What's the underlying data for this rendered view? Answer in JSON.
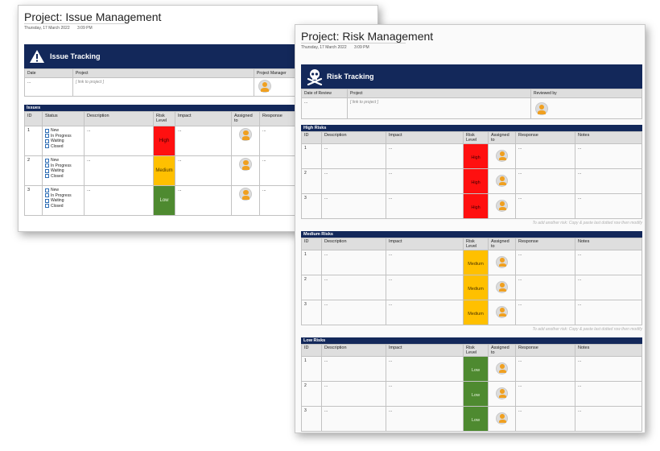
{
  "issue_page": {
    "title": "Project: Issue Management",
    "date": "Thursday, 17 March 2022",
    "time": "3:09 PM",
    "banner_title": "Issue Tracking",
    "banner_icon": "warning-icon",
    "meta_headers": {
      "date": "Date",
      "project": "Project",
      "manager": "Project Manager"
    },
    "meta_values": {
      "date": "...",
      "project": "[ link to project ]"
    },
    "section_label": "Issues",
    "columns": {
      "id": "ID",
      "status": "Status",
      "description": "Description",
      "risk": "Risk Level",
      "impact": "Impact",
      "assigned": "Assigned to",
      "response": "Response"
    },
    "status_options": [
      "New",
      "In Progress",
      "Waiting",
      "Closed"
    ],
    "rows": [
      {
        "id": "1",
        "description": "...",
        "risk": "High",
        "risk_class": "risk-high",
        "impact": "...",
        "response": "..."
      },
      {
        "id": "2",
        "description": "...",
        "risk": "Medium",
        "risk_class": "risk-medium",
        "impact": "...",
        "response": "..."
      },
      {
        "id": "3",
        "description": "...",
        "risk": "Low",
        "risk_class": "risk-low",
        "impact": "...",
        "response": "..."
      }
    ],
    "footnote": "To add another issue: Copy & p"
  },
  "risk_page": {
    "title": "Project: Risk Management",
    "date": "Thursday, 17 March 2022",
    "time": "3:09 PM",
    "banner_title": "Risk Tracking",
    "banner_icon": "skull-crossbones-icon",
    "meta_headers": {
      "date": "Date of Review",
      "project": "Project",
      "reviewer": "Reviewed by"
    },
    "meta_values": {
      "date": "...",
      "project": "[ link to project ]"
    },
    "columns": {
      "id": "ID",
      "description": "Description",
      "impact": "Impact",
      "risk": "Risk Level",
      "assigned": "Assigned to",
      "response": "Response",
      "notes": "Notes"
    },
    "sections": [
      {
        "label": "High Risks",
        "risk": "High",
        "risk_class": "risk-high",
        "rows": [
          {
            "id": "1",
            "description": "...",
            "impact": "...",
            "response": "...",
            "notes": "..."
          },
          {
            "id": "2",
            "description": "...",
            "impact": "...",
            "response": "...",
            "notes": "..."
          },
          {
            "id": "3",
            "description": "...",
            "impact": "...",
            "response": "...",
            "notes": "..."
          }
        ],
        "footnote": "To add another risk: Copy & paste last dotted row then modify"
      },
      {
        "label": "Medium Risks",
        "risk": "Medium",
        "risk_class": "risk-medium",
        "rows": [
          {
            "id": "1",
            "description": "...",
            "impact": "...",
            "response": "...",
            "notes": "..."
          },
          {
            "id": "2",
            "description": "...",
            "impact": "...",
            "response": "...",
            "notes": "..."
          },
          {
            "id": "3",
            "description": "...",
            "impact": "...",
            "response": "...",
            "notes": "..."
          }
        ],
        "footnote": "To add another risk: Copy & paste last dotted row then modify"
      },
      {
        "label": "Low Risks",
        "risk": "Low",
        "risk_class": "risk-low",
        "rows": [
          {
            "id": "1",
            "description": "...",
            "impact": "...",
            "response": "...",
            "notes": "..."
          },
          {
            "id": "2",
            "description": "...",
            "impact": "...",
            "response": "...",
            "notes": "..."
          },
          {
            "id": "3",
            "description": "...",
            "impact": "...",
            "response": "...",
            "notes": "..."
          }
        ],
        "footnote": "To add another risk: Copy & paste last dotted row then modify"
      }
    ]
  },
  "colors": {
    "banner": "#13285a",
    "high": "#ff1010",
    "medium": "#ffc000",
    "low": "#4e8a30",
    "avatar": "#f0a020"
  }
}
